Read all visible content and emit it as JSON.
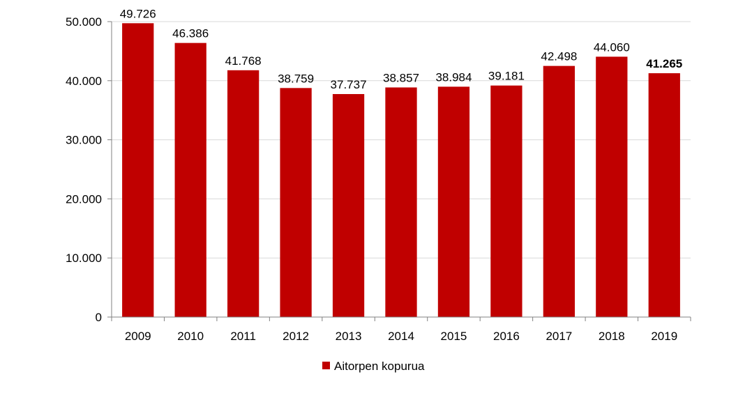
{
  "chart_data": {
    "type": "bar",
    "categories": [
      "2009",
      "2010",
      "2011",
      "2012",
      "2013",
      "2014",
      "2015",
      "2016",
      "2017",
      "2018",
      "2019"
    ],
    "series": [
      {
        "name": "Aitorpen kopurua",
        "color": "#C00000",
        "values": [
          49726,
          46386,
          41768,
          38759,
          37737,
          38857,
          38984,
          39181,
          42498,
          44060,
          41265
        ],
        "labels": [
          "49.726",
          "46.386",
          "41.768",
          "38.759",
          "37.737",
          "38.857",
          "38.984",
          "39.181",
          "42.498",
          "44.060",
          "41.265"
        ],
        "bold_label_index": 10
      }
    ],
    "ylim": [
      0,
      50000
    ],
    "yticks": [
      0,
      10000,
      20000,
      30000,
      40000,
      50000
    ],
    "ytick_labels": [
      "0",
      "10.000",
      "20.000",
      "30.000",
      "40.000",
      "50.000"
    ],
    "grid": true,
    "legend_position": "bottom-center",
    "title": "",
    "xlabel": "",
    "ylabel": ""
  }
}
